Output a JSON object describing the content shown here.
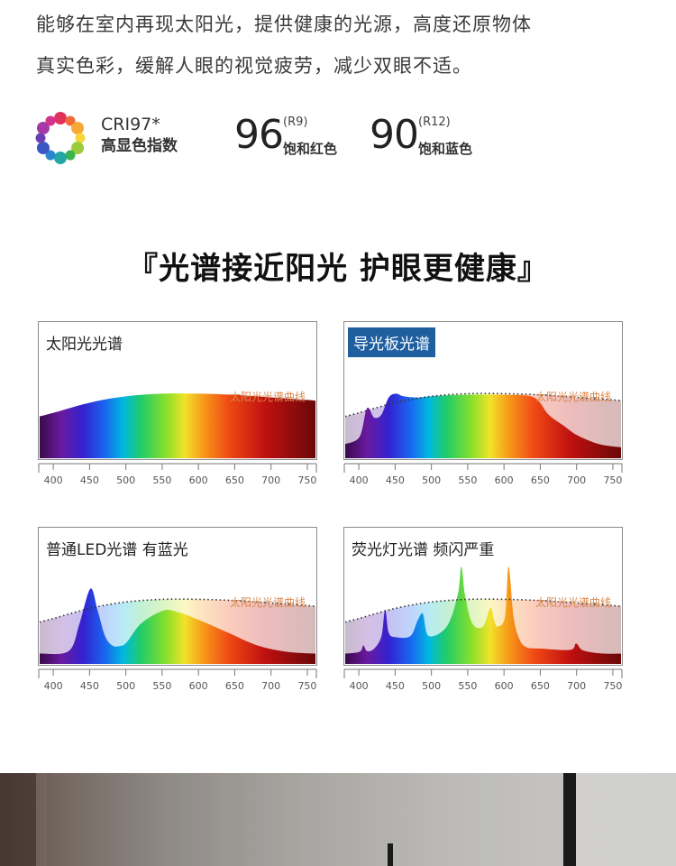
{
  "intro": {
    "line1": "能够在室内再现太阳光，提供健康的光源，高度还原物体",
    "line2": "真实色彩，缓解人眼的视觉疲劳，减少双眼不适。"
  },
  "cri": {
    "label": "CRI97*",
    "sub": "高显色指数",
    "wheel_colors": [
      "#e0335c",
      "#f26c3a",
      "#f7a935",
      "#f5d73a",
      "#9ccc3c",
      "#3bb34a",
      "#23a7a5",
      "#2a86d1",
      "#3b57c4",
      "#6a3fb4",
      "#a33aa8",
      "#d2338c"
    ],
    "r9": {
      "value": "96",
      "code": "(R9)",
      "desc": "饱和红色"
    },
    "r12": {
      "value": "90",
      "code": "(R12)",
      "desc": "饱和蓝色"
    }
  },
  "headline": "『光谱接近阳光  护眼更健康』",
  "curve_label": "太阳光光谱曲线",
  "chart_data": [
    {
      "type": "area",
      "title": "太阳光光谱",
      "highlight": false,
      "x": [
        380,
        400,
        450,
        500,
        550,
        600,
        650,
        700,
        750,
        760
      ],
      "y": [
        0.52,
        0.58,
        0.74,
        0.84,
        0.88,
        0.88,
        0.86,
        0.82,
        0.78,
        0.77
      ],
      "sun_curve": [
        0.52,
        0.58,
        0.74,
        0.84,
        0.88,
        0.88,
        0.86,
        0.82,
        0.78,
        0.77
      ],
      "xlim": [
        380,
        760
      ],
      "ylim": [
        0,
        1
      ],
      "xticks": [
        400,
        450,
        500,
        550,
        600,
        650,
        700,
        750
      ],
      "annotation": "太阳光光谱曲线"
    },
    {
      "type": "area",
      "title": "导光板光谱",
      "highlight": true,
      "x": [
        380,
        400,
        410,
        420,
        430,
        440,
        450,
        460,
        480,
        500,
        550,
        600,
        640,
        660,
        680,
        700,
        730,
        760
      ],
      "y": [
        0.08,
        0.2,
        0.65,
        0.5,
        0.55,
        0.82,
        0.88,
        0.84,
        0.82,
        0.84,
        0.86,
        0.86,
        0.82,
        0.55,
        0.38,
        0.22,
        0.08,
        0.03
      ],
      "sun_curve": [
        0.52,
        0.58,
        0.74,
        0.84,
        0.88,
        0.88,
        0.86,
        0.82,
        0.78,
        0.77
      ],
      "sun_x": [
        380,
        400,
        450,
        500,
        550,
        600,
        650,
        700,
        750,
        760
      ],
      "xlim": [
        380,
        760
      ],
      "ylim": [
        0,
        1
      ],
      "xticks": [
        400,
        450,
        500,
        550,
        600,
        650,
        700,
        750
      ],
      "annotation": "太阳光光谱曲线"
    },
    {
      "type": "area",
      "title": "普通LED光谱 有蓝光",
      "highlight": false,
      "x": [
        380,
        420,
        435,
        450,
        460,
        470,
        480,
        490,
        500,
        520,
        550,
        570,
        600,
        640,
        680,
        720,
        760
      ],
      "y": [
        0.02,
        0.06,
        0.5,
        1.05,
        0.7,
        0.3,
        0.15,
        0.14,
        0.2,
        0.5,
        0.7,
        0.68,
        0.55,
        0.35,
        0.15,
        0.05,
        0.02
      ],
      "sun_curve": [
        0.52,
        0.58,
        0.74,
        0.84,
        0.88,
        0.88,
        0.86,
        0.82,
        0.78,
        0.77
      ],
      "sun_x": [
        380,
        400,
        450,
        500,
        550,
        600,
        650,
        700,
        750,
        760
      ],
      "xlim": [
        380,
        760
      ],
      "ylim": [
        0,
        1
      ],
      "xticks": [
        400,
        450,
        500,
        550,
        600,
        650,
        700,
        750
      ],
      "annotation": "太阳光光谱曲线"
    },
    {
      "type": "area",
      "title": "荧光灯光谱 频闪严重",
      "highlight": false,
      "x": [
        380,
        400,
        405,
        410,
        420,
        430,
        435,
        440,
        450,
        470,
        480,
        487,
        495,
        520,
        535,
        540,
        545,
        555,
        570,
        580,
        585,
        590,
        600,
        605,
        612,
        620,
        630,
        650,
        690,
        698,
        706,
        720,
        740,
        760
      ],
      "y": [
        0.02,
        0.05,
        0.15,
        0.06,
        0.1,
        0.3,
        0.72,
        0.35,
        0.28,
        0.3,
        0.55,
        0.65,
        0.3,
        0.45,
        0.95,
        1.4,
        0.95,
        0.5,
        0.45,
        0.75,
        0.55,
        0.45,
        0.6,
        1.4,
        0.6,
        0.25,
        0.12,
        0.1,
        0.08,
        0.18,
        0.08,
        0.04,
        0.02,
        0.02
      ],
      "sun_curve": [
        0.52,
        0.58,
        0.74,
        0.84,
        0.88,
        0.88,
        0.86,
        0.82,
        0.78,
        0.77
      ],
      "sun_x": [
        380,
        400,
        450,
        500,
        550,
        600,
        650,
        700,
        750,
        760
      ],
      "xlim": [
        380,
        760
      ],
      "ylim": [
        0,
        1
      ],
      "xticks": [
        400,
        450,
        500,
        550,
        600,
        650,
        700,
        750
      ],
      "annotation": "太阳光光谱曲线"
    }
  ]
}
